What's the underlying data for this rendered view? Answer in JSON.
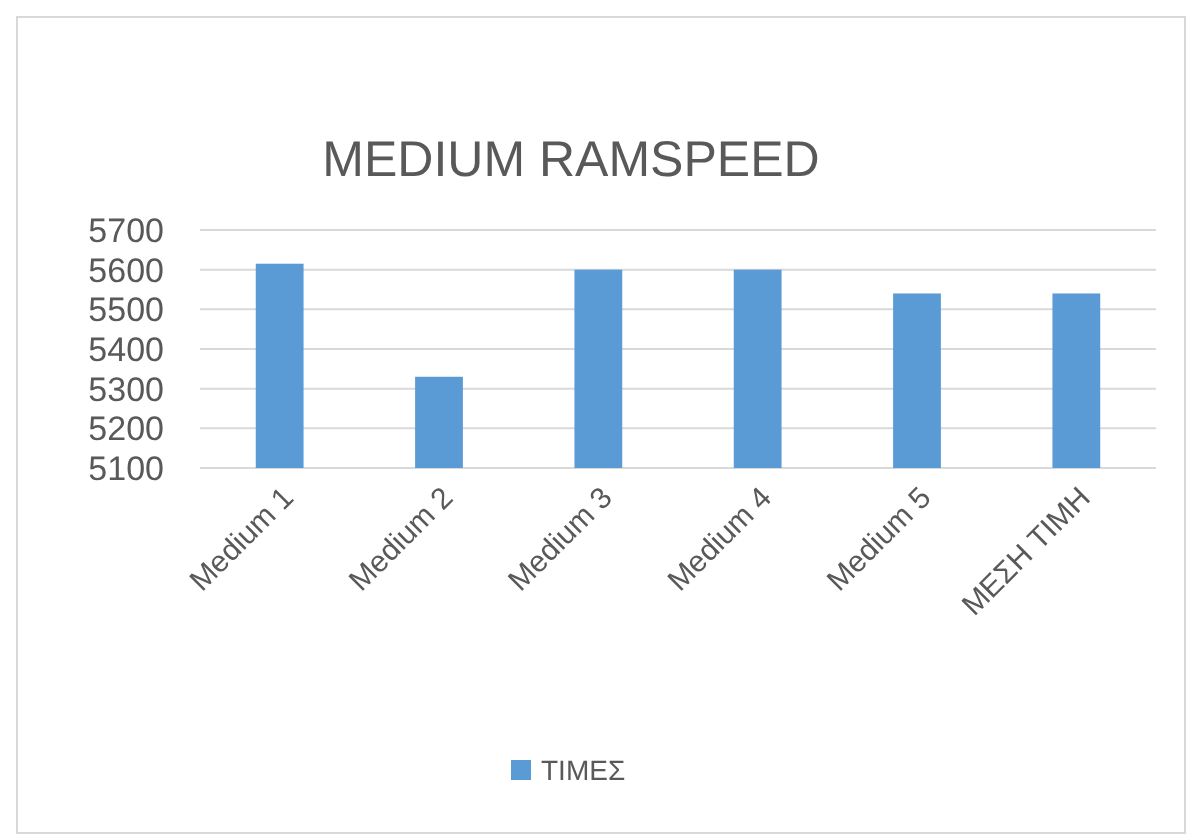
{
  "chart_data": {
    "type": "bar",
    "title": "MEDIUM RAMSPEED",
    "categories": [
      "Medium 1",
      "Medium 2",
      "Medium 3",
      "Medium 4",
      "Medium 5",
      "ΜΕΣΗ ΤΙΜΗ"
    ],
    "series": [
      {
        "name": "ΤΙΜΕΣ",
        "color": "#5b9bd5",
        "values": [
          5615,
          5330,
          5600,
          5600,
          5540,
          5540
        ]
      }
    ],
    "ylim": [
      5100,
      5700
    ],
    "yticks": [
      5100,
      5200,
      5300,
      5400,
      5500,
      5600,
      5700
    ],
    "grid": "y",
    "legend": "bottom"
  }
}
